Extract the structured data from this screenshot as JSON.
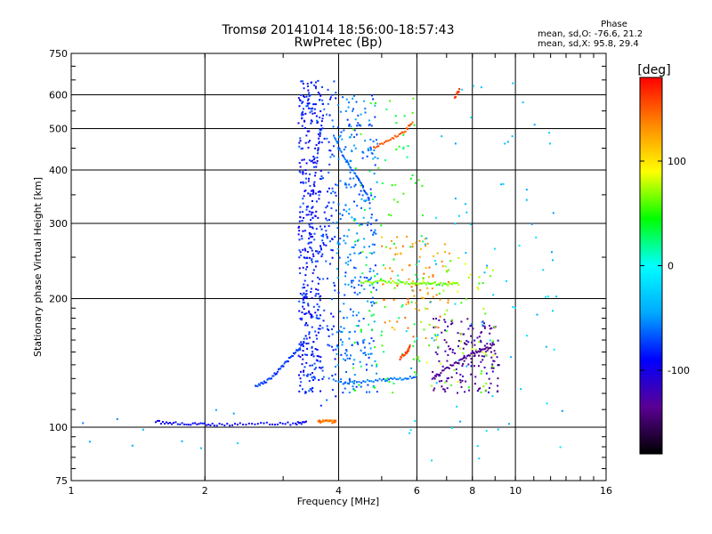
{
  "chart_data": {
    "type": "scatter",
    "title": "Tromsø 20141014 18:56:00-18:57:43",
    "subtitle": "RwPretec (Bp)",
    "xlabel": "Frequency [MHz]",
    "ylabel": "Stationary phase Virtual Height [km]",
    "x_scale": "log",
    "y_scale": "log",
    "xlim": [
      1,
      16
    ],
    "ylim": [
      75,
      750
    ],
    "x_ticks": [
      1,
      2,
      4,
      6,
      8,
      10,
      16
    ],
    "y_ticks": [
      75,
      100,
      200,
      300,
      400,
      500,
      600,
      750
    ],
    "grid_x": [
      2,
      4,
      6,
      8,
      10
    ],
    "grid_y": [
      100,
      200,
      300,
      400,
      500,
      600
    ],
    "colorbar": {
      "label": "[deg]",
      "range": [
        -180,
        180
      ],
      "ticks": [
        100,
        0,
        -100
      ],
      "colormap": [
        "#000000",
        "#5a0094",
        "#0000ff",
        "#00aaff",
        "#00ffff",
        "#00ff00",
        "#ffff00",
        "#ff8800",
        "#ff0000"
      ]
    },
    "stats": {
      "header": "Phase",
      "o_label": "mean, sd,O:",
      "o_values": "-76.6, 21.2",
      "x_label": "mean, sd,X:",
      "x_values": "95.8, 29.4"
    },
    "traces": [
      {
        "x": [
          1.55,
          1.7,
          1.9,
          2.1,
          2.4,
          2.8,
          3.2,
          3.4
        ],
        "y": [
          103,
          102,
          102,
          101.5,
          101.5,
          102,
          102,
          103
        ],
        "phase": -95
      },
      {
        "x": [
          3.6,
          3.7,
          3.85,
          3.95
        ],
        "y": [
          103,
          103.5,
          103,
          103
        ],
        "phase": 140
      },
      {
        "x": [
          2.6,
          2.75,
          2.9,
          3.05,
          3.2,
          3.35
        ],
        "y": [
          125,
          128,
          134,
          142,
          150,
          158
        ],
        "phase": -75
      },
      {
        "x": [
          3.3,
          3.4,
          3.5,
          3.6,
          3.7
        ],
        "y": [
          180,
          250,
          350,
          450,
          550
        ],
        "phase": -85
      },
      {
        "x": [
          3.9,
          4.1,
          4.3,
          4.5,
          4.7
        ],
        "y": [
          480,
          430,
          400,
          370,
          340
        ],
        "phase": -65
      },
      {
        "x": [
          4.8,
          5.2,
          5.6,
          5.9
        ],
        "y": [
          450,
          470,
          490,
          520
        ],
        "phase": 150
      },
      {
        "x": [
          4.5,
          5.0,
          5.5,
          6.0,
          6.5,
          7.0,
          7.5
        ],
        "y": [
          218,
          219,
          218,
          217,
          217,
          216,
          217
        ],
        "phase": 65
      },
      {
        "x": [
          6.5,
          7.0,
          7.5,
          8.0,
          8.5,
          9.0
        ],
        "y": [
          130,
          137,
          143,
          149,
          152,
          156
        ],
        "phase": -135
      },
      {
        "x": [
          4.0,
          4.5,
          5.0,
          5.5,
          6.0
        ],
        "y": [
          127,
          128,
          129,
          130,
          131
        ],
        "phase": -60
      },
      {
        "x": [
          5.5,
          5.7,
          5.8
        ],
        "y": [
          145,
          150,
          155
        ],
        "phase": 160
      },
      {
        "x": [
          7.3,
          7.5
        ],
        "y": [
          590,
          620
        ],
        "phase": 165
      }
    ],
    "scatter_clusters": [
      {
        "x_range": [
          3.25,
          3.65
        ],
        "y_range": [
          120,
          650
        ],
        "n": 380,
        "phase": -85
      },
      {
        "x_range": [
          3.65,
          3.95
        ],
        "y_range": [
          110,
          650
        ],
        "n": 120,
        "phase": -75
      },
      {
        "x_range": [
          3.95,
          4.9
        ],
        "y_range": [
          120,
          600
        ],
        "n": 320,
        "phase": -60
      },
      {
        "x_range": [
          4.3,
          6.2
        ],
        "y_range": [
          120,
          600
        ],
        "n": 110,
        "phase": 40
      },
      {
        "x_range": [
          5.0,
          7.2
        ],
        "y_range": [
          160,
          280
        ],
        "n": 90,
        "phase": 130
      },
      {
        "x_range": [
          6.5,
          9.2
        ],
        "y_range": [
          120,
          180
        ],
        "n": 160,
        "phase": -130
      },
      {
        "x_range": [
          6.0,
          9.0
        ],
        "y_range": [
          120,
          250
        ],
        "n": 70,
        "phase": 70
      },
      {
        "x_range": [
          5.5,
          13.0
        ],
        "y_range": [
          80,
          640
        ],
        "n": 90,
        "phase": -30
      },
      {
        "x_range": [
          1.05,
          2.5
        ],
        "y_range": [
          85,
          110
        ],
        "n": 10,
        "phase": -40
      }
    ]
  }
}
